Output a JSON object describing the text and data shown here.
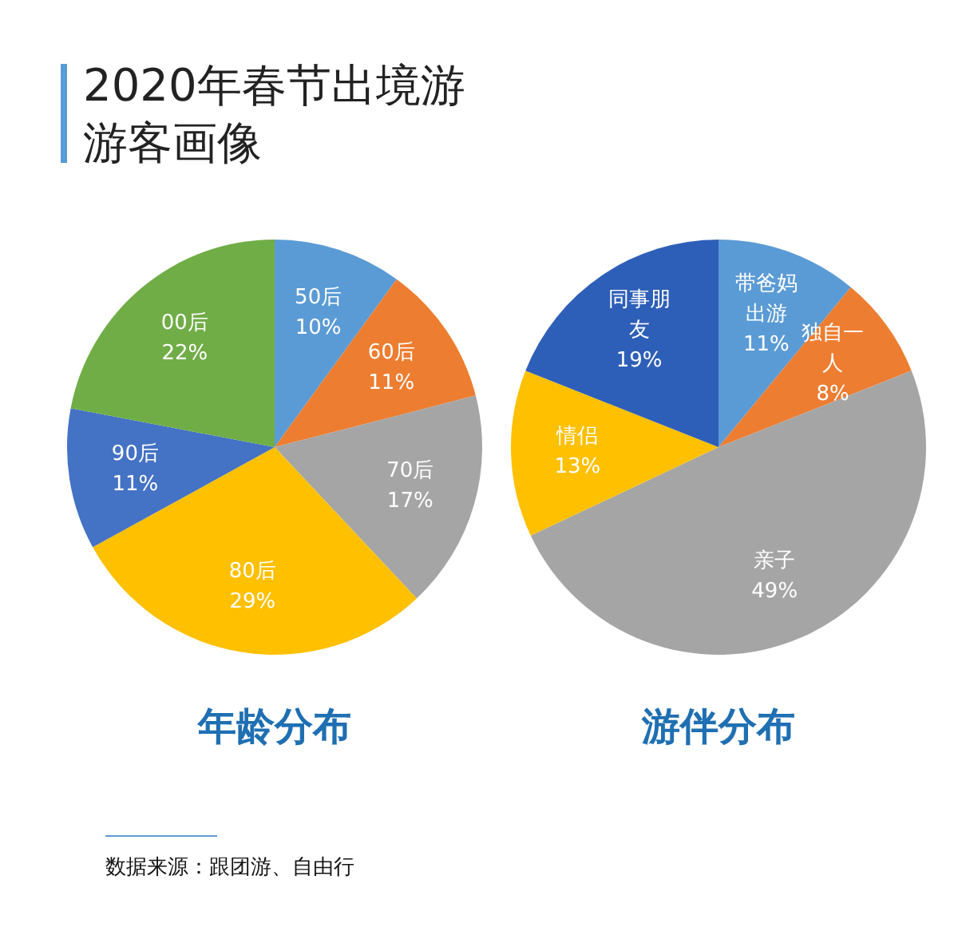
{
  "chart_data": [
    {
      "type": "pie",
      "title": "年龄分布",
      "annotations": [
        "2020年春节出境游游客画像",
        "数据来源：跟团游、自由行"
      ],
      "categories": [
        "50后",
        "60后",
        "70后",
        "80后",
        "90后",
        "00后"
      ],
      "values": [
        10,
        11,
        17,
        29,
        11,
        22
      ],
      "colors": [
        "#5b9bd5",
        "#ed7d31",
        "#a5a5a5",
        "#ffc000",
        "#4472c4",
        "#70ad47"
      ],
      "value_labels": [
        "10%",
        "11%",
        "17%",
        "29%",
        "11%",
        "22%"
      ]
    },
    {
      "type": "pie",
      "title": "游伴分布",
      "categories": [
        "带爸妈出游",
        "独自一人",
        "亲子",
        "情侣",
        "同事朋友"
      ],
      "values": [
        11,
        8,
        49,
        13,
        19
      ],
      "colors": [
        "#5b9bd5",
        "#ed7d31",
        "#a5a5a5",
        "#ffc000",
        "#2e5fb8"
      ],
      "value_labels": [
        "11%",
        "8%",
        "49%",
        "13%",
        "19%"
      ]
    }
  ]
}
